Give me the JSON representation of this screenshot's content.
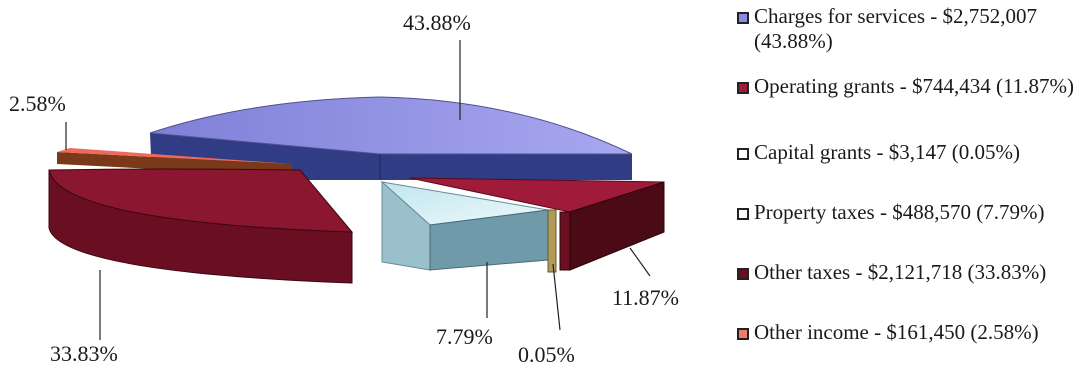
{
  "chart_data": {
    "type": "pie",
    "title": "",
    "slices": [
      {
        "name": "Charges for services",
        "value": 2752007,
        "percent": 43.88,
        "percent_label": "43.88%",
        "legend": "Charges for services - $2,752,007 (43.88%)",
        "color": "#8a8ae0"
      },
      {
        "name": "Operating grants",
        "value": 744434,
        "percent": 11.87,
        "percent_label": "11.87%",
        "legend": "Operating grants - $744,434 (11.87%)",
        "color": "#a01a3a"
      },
      {
        "name": "Capital grants",
        "value": 3147,
        "percent": 0.05,
        "percent_label": "0.05%",
        "legend": "Capital grants - $3,147 (0.05%)",
        "color": "#fff8e0"
      },
      {
        "name": "Property taxes",
        "value": 488570,
        "percent": 7.79,
        "percent_label": "7.79%",
        "legend": "Property taxes - $488,570 (7.79%)",
        "color": "#d8f2f4"
      },
      {
        "name": "Other taxes",
        "value": 2121718,
        "percent": 33.83,
        "percent_label": "33.83%",
        "legend": "Other taxes - $2,121,718 (33.83%)",
        "color": "#6a0f22"
      },
      {
        "name": "Other income",
        "value": 161450,
        "percent": 2.58,
        "percent_label": "2.58%",
        "legend": "Other income - $161,450 (2.58%)",
        "color": "#f07a6a"
      }
    ],
    "legend_position": "right",
    "style": "3d-exploded-pie"
  }
}
